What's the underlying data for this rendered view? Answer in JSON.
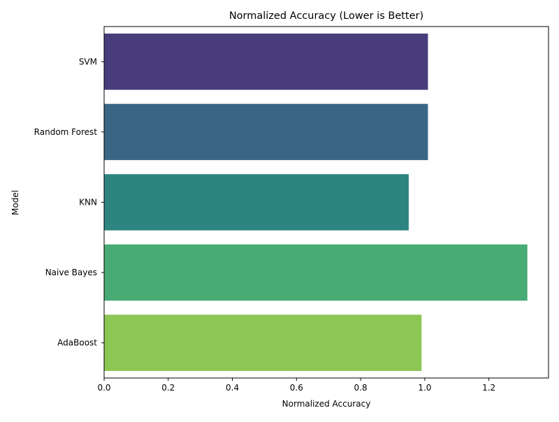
{
  "chart_data": {
    "type": "bar",
    "orientation": "horizontal",
    "title": "Normalized Accuracy (Lower is Better)",
    "xlabel": "Normalized Accuracy",
    "ylabel": "Model",
    "categories": [
      "SVM",
      "Random Forest",
      "KNN",
      "Naive Bayes",
      "AdaBoost"
    ],
    "values": [
      1.01,
      1.01,
      0.95,
      1.32,
      0.99
    ],
    "colors": [
      "#483d7a",
      "#3b6585",
      "#2e8580",
      "#48ab74",
      "#8cc653"
    ],
    "xlim": [
      0,
      1.386
    ],
    "xticks": [
      0.0,
      0.2,
      0.4,
      0.6,
      0.8,
      1.0,
      1.2
    ],
    "xtick_labels": [
      "0.0",
      "0.2",
      "0.4",
      "0.6",
      "0.8",
      "1.0",
      "1.2"
    ],
    "grid": false,
    "legend": "none"
  }
}
